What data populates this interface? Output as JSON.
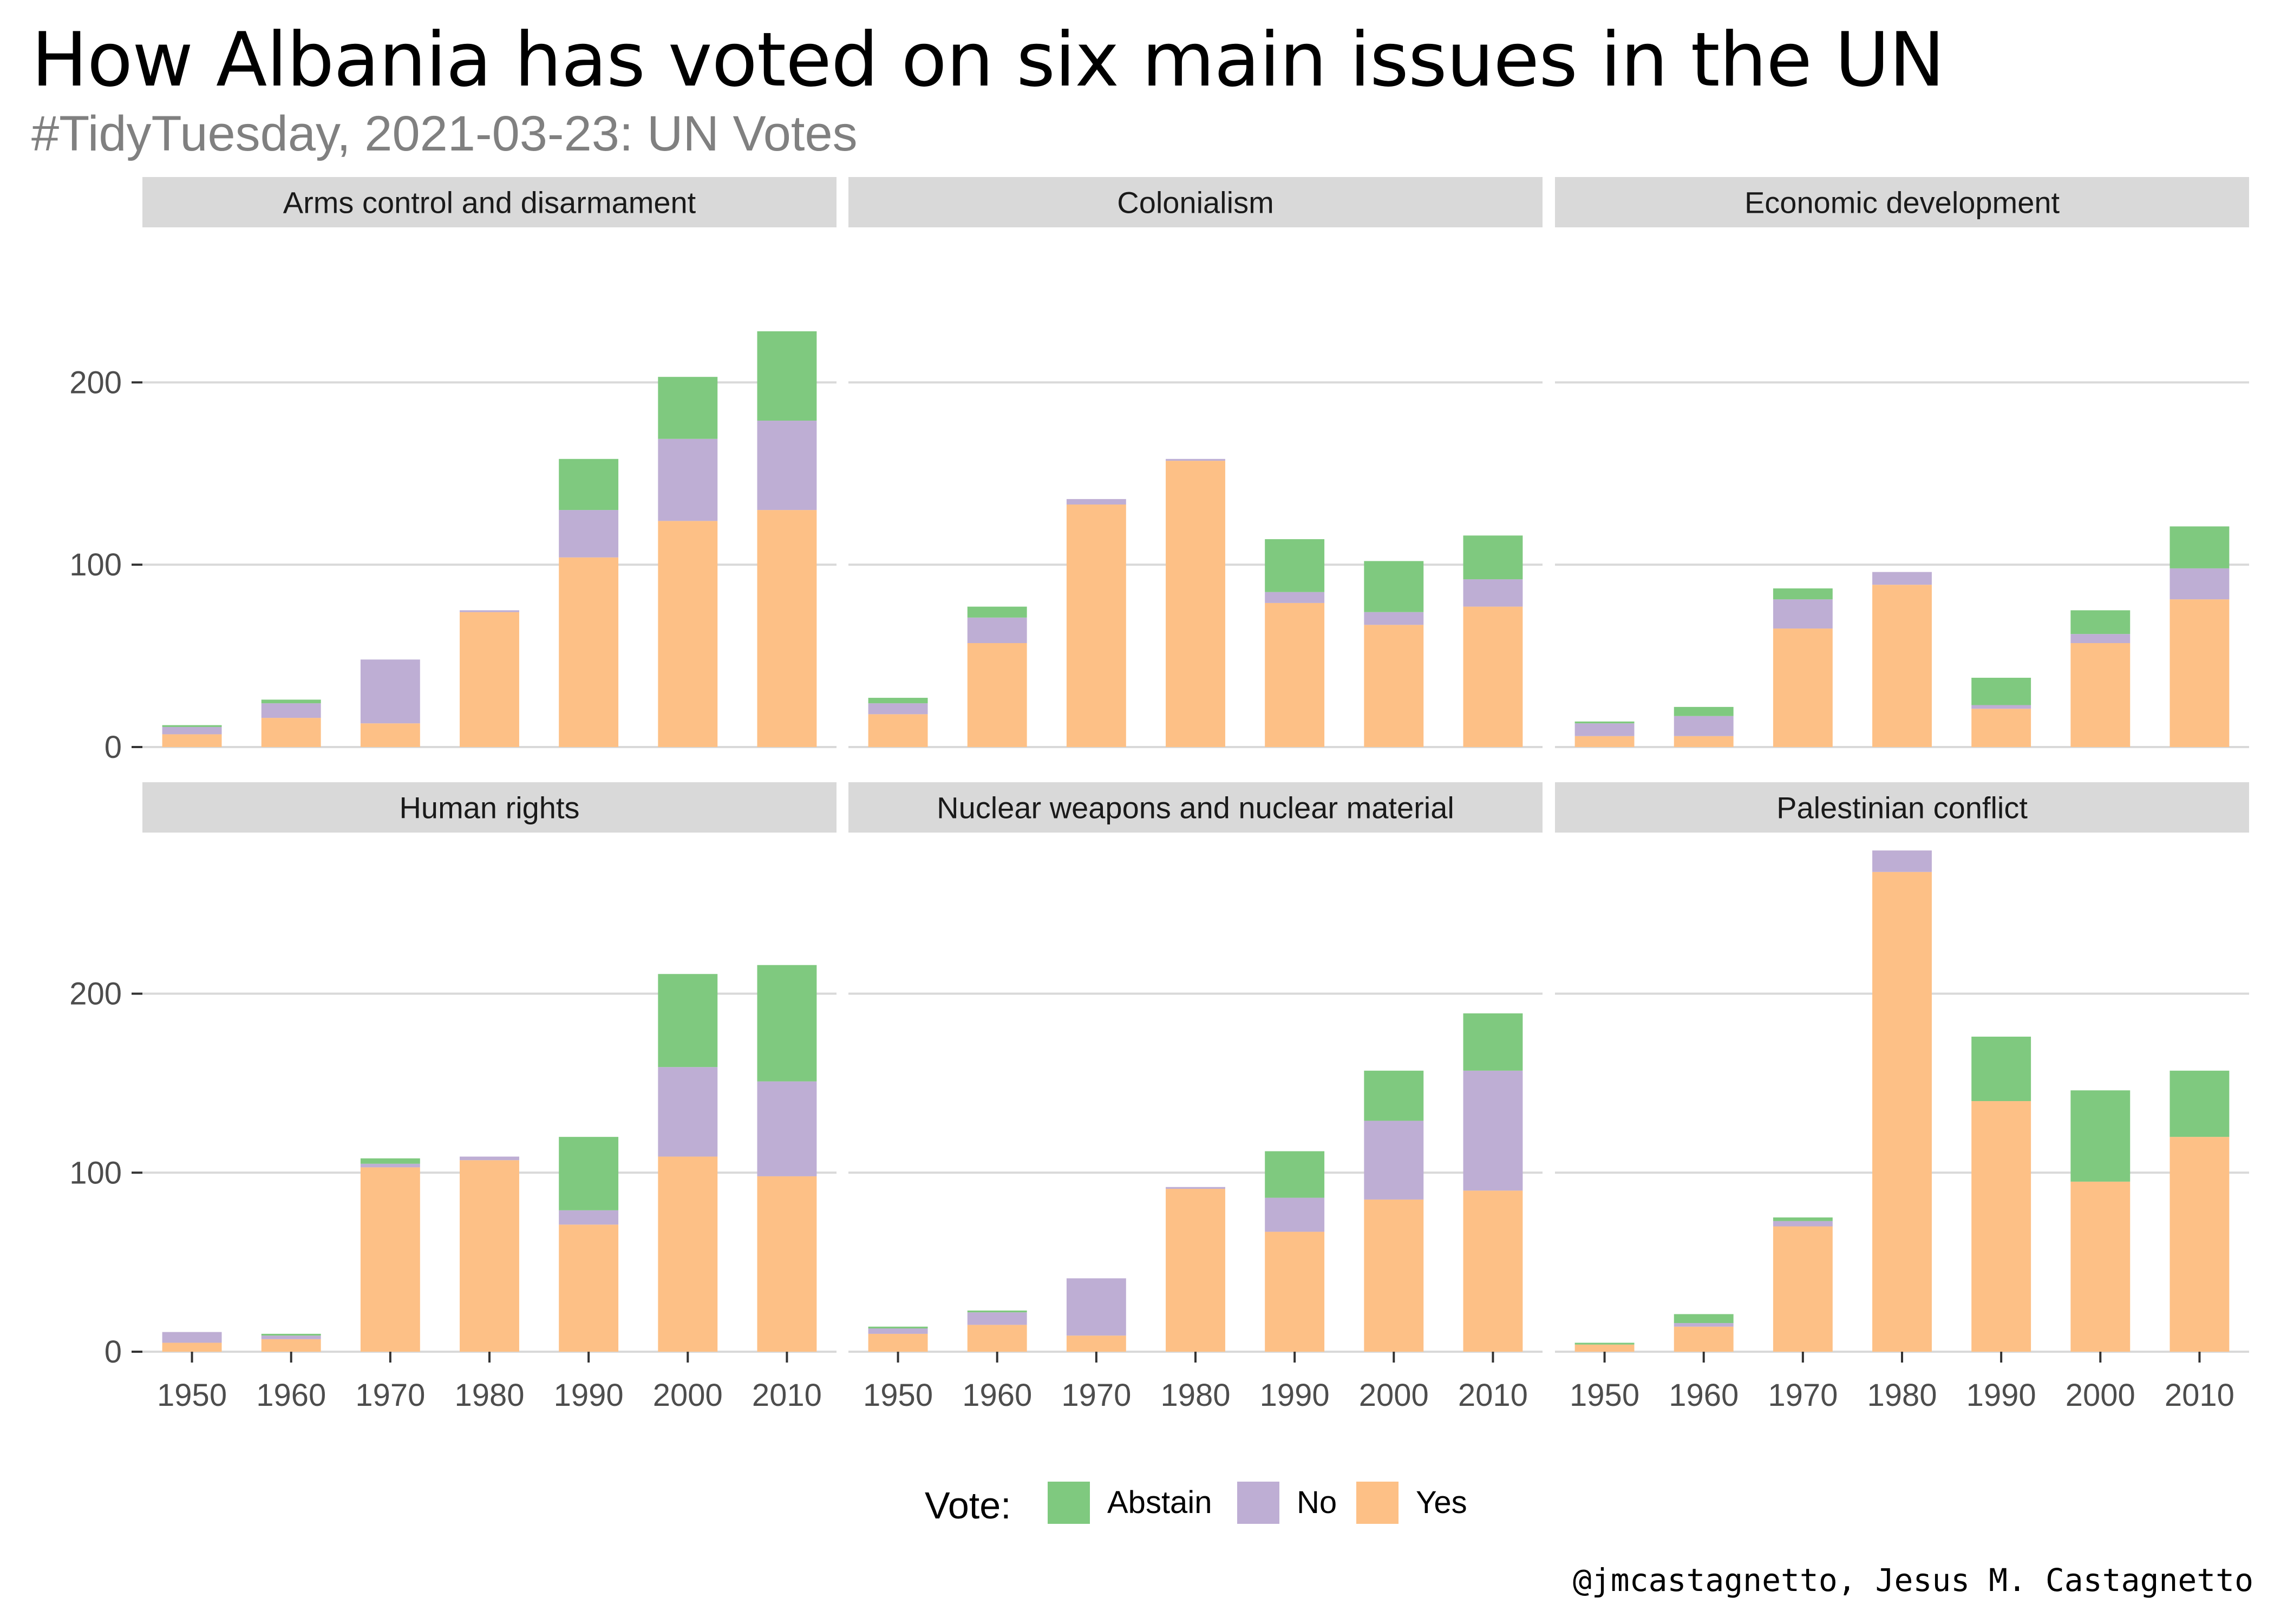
{
  "title": "How Albania has voted on six main issues in the UN",
  "subtitle": "#TidyTuesday, 2021-03-23: UN Votes",
  "caption": "@jmcastagnetto, Jesus M. Castagnetto",
  "colors": {
    "Abstain": "#7fc97f",
    "No": "#beaed4",
    "Yes": "#fdc086",
    "strip": "#d9d9d9",
    "grid": "#d9d9d9"
  },
  "chart_data": {
    "type": "bar",
    "stacked": true,
    "facets_layout": "2 rows x 3 columns",
    "categories": [
      "1950",
      "1960",
      "1970",
      "1980",
      "1990",
      "2000",
      "2010"
    ],
    "y_ticks": [
      0,
      100,
      200
    ],
    "ylim_row1": [
      0,
      285
    ],
    "ylim_row2": [
      0,
      290
    ],
    "legend": {
      "title": "Vote:",
      "position": "bottom",
      "entries": [
        "Abstain",
        "No",
        "Yes"
      ]
    },
    "stack_order_bottom_to_top": [
      "Yes",
      "No",
      "Abstain"
    ],
    "panels": [
      {
        "title": "Arms control and disarmament",
        "series": [
          {
            "name": "Yes",
            "values": [
              7,
              16,
              13,
              74,
              104,
              124,
              130
            ]
          },
          {
            "name": "No",
            "values": [
              4,
              8,
              35,
              1,
              26,
              45,
              49
            ]
          },
          {
            "name": "Abstain",
            "values": [
              1,
              2,
              0,
              0,
              28,
              34,
              49
            ]
          }
        ]
      },
      {
        "title": "Colonialism",
        "series": [
          {
            "name": "Yes",
            "values": [
              18,
              57,
              133,
              157,
              79,
              67,
              77
            ]
          },
          {
            "name": "No",
            "values": [
              6,
              14,
              3,
              1,
              6,
              7,
              15
            ]
          },
          {
            "name": "Abstain",
            "values": [
              3,
              6,
              0,
              0,
              29,
              28,
              24
            ]
          }
        ]
      },
      {
        "title": "Economic development",
        "series": [
          {
            "name": "Yes",
            "values": [
              6,
              6,
              65,
              89,
              21,
              57,
              81
            ]
          },
          {
            "name": "No",
            "values": [
              7,
              11,
              16,
              7,
              2,
              5,
              17
            ]
          },
          {
            "name": "Abstain",
            "values": [
              1,
              5,
              6,
              0,
              15,
              13,
              23
            ]
          }
        ]
      },
      {
        "title": "Human rights",
        "series": [
          {
            "name": "Yes",
            "values": [
              5,
              7,
              103,
              107,
              71,
              109,
              98
            ]
          },
          {
            "name": "No",
            "values": [
              6,
              2,
              2,
              2,
              8,
              50,
              53
            ]
          },
          {
            "name": "Abstain",
            "values": [
              0,
              1,
              3,
              0,
              41,
              52,
              65
            ]
          }
        ]
      },
      {
        "title": "Nuclear weapons and nuclear material",
        "series": [
          {
            "name": "Yes",
            "values": [
              10,
              15,
              9,
              91,
              67,
              85,
              90
            ]
          },
          {
            "name": "No",
            "values": [
              3,
              7,
              32,
              1,
              19,
              44,
              67
            ]
          },
          {
            "name": "Abstain",
            "values": [
              1,
              1,
              0,
              0,
              26,
              28,
              32
            ]
          }
        ]
      },
      {
        "title": "Palestinian conflict",
        "series": [
          {
            "name": "Yes",
            "values": [
              4,
              14,
              70,
              268,
              140,
              95,
              120
            ]
          },
          {
            "name": "No",
            "values": [
              0,
              2,
              3,
              12,
              0,
              0,
              0
            ]
          },
          {
            "name": "Abstain",
            "values": [
              1,
              5,
              2,
              0,
              36,
              51,
              37
            ]
          }
        ]
      }
    ]
  }
}
